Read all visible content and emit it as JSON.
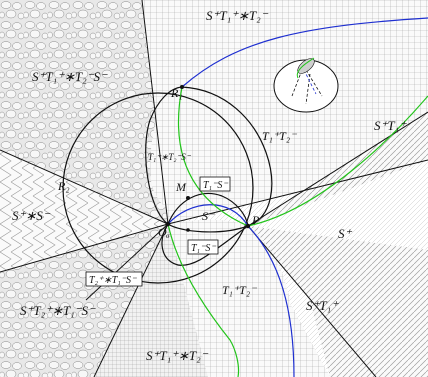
{
  "colors": {
    "line": "#111111",
    "blue_curve": "#1e2fd0",
    "green_curve": "#22c41a",
    "region_light": "#f4f4f4",
    "region_pebble": "#e6e6e6"
  },
  "points": {
    "R1": "R₁",
    "R2": "R₂",
    "M": "M",
    "O": "O",
    "O_sub": "σ",
    "P": "P"
  },
  "regions": {
    "top": "S⁺T₁⁺∗T₂⁻",
    "upper_left": "S⁺T₁⁺∗T₂⁻S⁻",
    "left": "S⁺∗S⁻",
    "lower_left": "S⁺T₂⁺∗T₁⁻S⁻",
    "bottom": "S⁺T₁⁺∗T₂⁻",
    "inner_upper": "T₁⁺∗T₂⁻S⁻",
    "right_upper_lens": "T₁⁺T₂⁻",
    "right_upper": "S⁺T₁⁺",
    "right": "S⁺",
    "lower_lens": "T₁⁺T₂⁻",
    "lower_right": "S⁺T₁⁺",
    "center": "S⁻"
  },
  "boxed_labels": {
    "box_upper": "T₁⁻S⁻",
    "box_lower": "T₁⁻S⁻",
    "box_left": "T₂⁺∗T₁⁻S⁻"
  }
}
